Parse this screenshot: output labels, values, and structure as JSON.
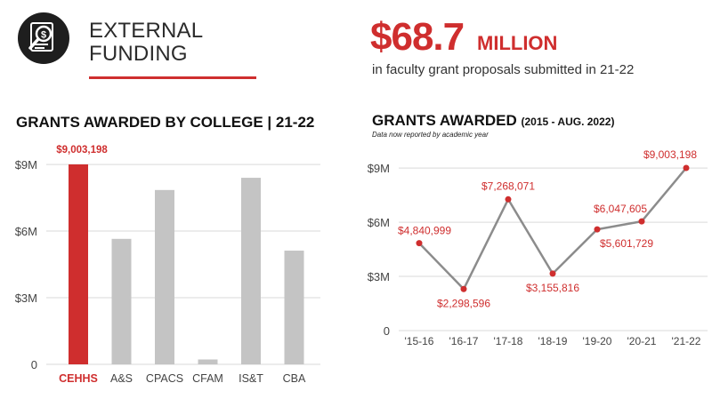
{
  "header": {
    "title_line1": "EXTERNAL",
    "title_line2": "FUNDING",
    "stat_value": "$68.7",
    "stat_unit": "MILLION",
    "stat_description": "in faculty grant proposals submitted in 21-22",
    "logo_icon": "document-dollar-magnifier-icon"
  },
  "colors": {
    "accent": "#cf2e2e",
    "bar_gray": "#c4c4c4",
    "line_gray": "#8c8c8c",
    "grid": "#d9d9d9"
  },
  "chart_data": [
    {
      "type": "bar",
      "title": "GRANTS AWARDED BY COLLEGE  |  21-22",
      "categories": [
        "CEHHS",
        "A&S",
        "CPACS",
        "CFAM",
        "IS&T",
        "CBA"
      ],
      "values": [
        9003198,
        5650000,
        7850000,
        220000,
        8400000,
        5120000
      ],
      "highlight_index": 0,
      "highlight_label": "$9,003,198",
      "yticks": [
        0,
        3000000,
        6000000,
        9000000
      ],
      "ytick_labels": [
        "0",
        "$3M",
        "$6M",
        "$9M"
      ],
      "ylim": [
        0,
        9003198
      ],
      "grid": true
    },
    {
      "type": "line",
      "title": "GRANTS AWARDED",
      "subtitle": "(2015 - AUG. 2022)",
      "note": "Data now reported by academic year",
      "categories": [
        "'15-16",
        "'16-17",
        "'17-18",
        "'18-19",
        "'19-20",
        "'20-21",
        "'21-22"
      ],
      "values": [
        4840999,
        2298596,
        7268071,
        3155816,
        5601729,
        6047605,
        9003198
      ],
      "labels": [
        "$4,840,999",
        "$2,298,596",
        "$7,268,071",
        "$3,155,816",
        "$5,601,729",
        "$6,047,605",
        "$9,003,198"
      ],
      "label_positions": [
        "above",
        "below",
        "above",
        "below",
        "below",
        "above",
        "above"
      ],
      "yticks": [
        0,
        3000000,
        6000000,
        9000000
      ],
      "ytick_labels": [
        "0",
        "$3M",
        "$6M",
        "$9M"
      ],
      "ylim": [
        0,
        9300000
      ],
      "grid": true
    }
  ]
}
